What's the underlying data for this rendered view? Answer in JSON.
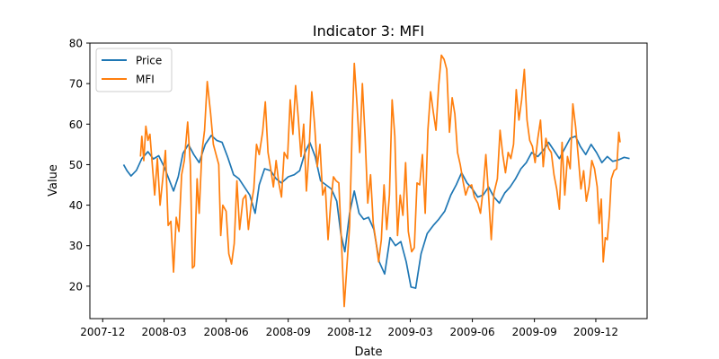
{
  "chart_data": {
    "type": "line",
    "title": "Indicator 3: MFI",
    "xlabel": "Date",
    "ylabel": "Value",
    "xlim": [
      "2007-11-12",
      "2010-02-15"
    ],
    "ylim": [
      12,
      80
    ],
    "xticks": [
      "2007-12",
      "2008-03",
      "2008-06",
      "2008-09",
      "2008-12",
      "2009-03",
      "2009-06",
      "2009-09",
      "2009-12"
    ],
    "yticks": [
      20,
      30,
      40,
      50,
      60,
      70,
      80
    ],
    "grid": false,
    "legend": "top-left",
    "series": [
      {
        "name": "Price",
        "color": "#1f77b4",
        "points": [
          [
            "2008-01-01",
            50.0
          ],
          [
            "2008-01-06",
            48.5
          ],
          [
            "2008-01-12",
            47.2
          ],
          [
            "2008-01-20",
            48.6
          ],
          [
            "2008-01-28",
            51.5
          ],
          [
            "2008-02-06",
            53.2
          ],
          [
            "2008-02-14",
            51.4
          ],
          [
            "2008-02-22",
            52.2
          ],
          [
            "2008-03-01",
            49.5
          ],
          [
            "2008-03-08",
            46.5
          ],
          [
            "2008-03-15",
            43.5
          ],
          [
            "2008-03-22",
            47.0
          ],
          [
            "2008-03-29",
            52.8
          ],
          [
            "2008-04-06",
            55.0
          ],
          [
            "2008-04-14",
            52.5
          ],
          [
            "2008-04-22",
            50.5
          ],
          [
            "2008-05-01",
            55.0
          ],
          [
            "2008-05-10",
            57.2
          ],
          [
            "2008-05-18",
            56.0
          ],
          [
            "2008-05-26",
            55.5
          ],
          [
            "2008-06-03",
            52.0
          ],
          [
            "2008-06-12",
            47.5
          ],
          [
            "2008-06-20",
            46.5
          ],
          [
            "2008-06-28",
            44.5
          ],
          [
            "2008-07-06",
            42.5
          ],
          [
            "2008-07-14",
            38.0
          ],
          [
            "2008-07-20",
            45.0
          ],
          [
            "2008-07-28",
            49.0
          ],
          [
            "2008-08-06",
            48.5
          ],
          [
            "2008-08-14",
            46.5
          ],
          [
            "2008-08-22",
            45.5
          ],
          [
            "2008-09-01",
            47.0
          ],
          [
            "2008-09-10",
            47.5
          ],
          [
            "2008-09-18",
            48.5
          ],
          [
            "2008-09-26",
            53.0
          ],
          [
            "2008-10-03",
            55.5
          ],
          [
            "2008-10-11",
            52.0
          ],
          [
            "2008-10-19",
            46.0
          ],
          [
            "2008-10-27",
            45.0
          ],
          [
            "2008-11-04",
            44.0
          ],
          [
            "2008-11-12",
            41.0
          ],
          [
            "2008-11-18",
            33.0
          ],
          [
            "2008-11-24",
            28.5
          ],
          [
            "2008-12-01",
            38.0
          ],
          [
            "2008-12-08",
            43.5
          ],
          [
            "2008-12-15",
            38.0
          ],
          [
            "2008-12-22",
            36.5
          ],
          [
            "2008-12-29",
            37.0
          ],
          [
            "2009-01-06",
            34.0
          ],
          [
            "2009-01-14",
            26.0
          ],
          [
            "2009-01-22",
            23.0
          ],
          [
            "2009-01-30",
            32.0
          ],
          [
            "2009-02-07",
            30.0
          ],
          [
            "2009-02-15",
            31.0
          ],
          [
            "2009-02-23",
            26.0
          ],
          [
            "2009-03-02",
            19.8
          ],
          [
            "2009-03-09",
            19.5
          ],
          [
            "2009-03-17",
            28.0
          ],
          [
            "2009-03-26",
            33.0
          ],
          [
            "2009-04-04",
            35.0
          ],
          [
            "2009-04-12",
            36.5
          ],
          [
            "2009-04-21",
            38.5
          ],
          [
            "2009-04-30",
            42.5
          ],
          [
            "2009-05-08",
            45.0
          ],
          [
            "2009-05-16",
            48.0
          ],
          [
            "2009-05-24",
            45.5
          ],
          [
            "2009-06-01",
            44.0
          ],
          [
            "2009-06-09",
            42.0
          ],
          [
            "2009-06-17",
            42.5
          ],
          [
            "2009-06-25",
            44.5
          ],
          [
            "2009-07-03",
            42.0
          ],
          [
            "2009-07-11",
            40.5
          ],
          [
            "2009-07-19",
            43.0
          ],
          [
            "2009-07-27",
            44.5
          ],
          [
            "2009-08-04",
            46.5
          ],
          [
            "2009-08-12",
            49.0
          ],
          [
            "2009-08-20",
            50.5
          ],
          [
            "2009-08-28",
            53.0
          ],
          [
            "2009-09-06",
            52.0
          ],
          [
            "2009-09-14",
            53.5
          ],
          [
            "2009-09-22",
            55.5
          ],
          [
            "2009-09-30",
            53.5
          ],
          [
            "2009-10-08",
            51.5
          ],
          [
            "2009-10-16",
            54.0
          ],
          [
            "2009-10-24",
            56.5
          ],
          [
            "2009-11-01",
            57.0
          ],
          [
            "2009-11-08",
            54.5
          ],
          [
            "2009-11-16",
            52.5
          ],
          [
            "2009-11-24",
            55.0
          ],
          [
            "2009-12-02",
            53.0
          ],
          [
            "2009-12-10",
            50.5
          ],
          [
            "2009-12-18",
            52.0
          ],
          [
            "2009-12-26",
            50.8
          ],
          [
            "2010-01-04",
            51.2
          ],
          [
            "2010-01-12",
            51.8
          ],
          [
            "2010-01-20",
            51.5
          ]
        ]
      },
      {
        "name": "MFI",
        "color": "#ff7f0e",
        "points": [
          [
            "2008-01-26",
            52.0
          ],
          [
            "2008-01-28",
            57.0
          ],
          [
            "2008-01-31",
            51.0
          ],
          [
            "2008-02-03",
            59.5
          ],
          [
            "2008-02-06",
            56.0
          ],
          [
            "2008-02-09",
            57.5
          ],
          [
            "2008-02-12",
            51.0
          ],
          [
            "2008-02-16",
            42.5
          ],
          [
            "2008-02-20",
            51.5
          ],
          [
            "2008-02-24",
            40.0
          ],
          [
            "2008-02-28",
            46.5
          ],
          [
            "2008-03-03",
            53.5
          ],
          [
            "2008-03-07",
            35.0
          ],
          [
            "2008-03-11",
            36.0
          ],
          [
            "2008-03-15",
            23.5
          ],
          [
            "2008-03-19",
            37.0
          ],
          [
            "2008-03-23",
            33.5
          ],
          [
            "2008-03-27",
            47.5
          ],
          [
            "2008-03-31",
            51.0
          ],
          [
            "2008-04-05",
            60.5
          ],
          [
            "2008-04-09",
            50.0
          ],
          [
            "2008-04-12",
            24.5
          ],
          [
            "2008-04-15",
            25.0
          ],
          [
            "2008-04-19",
            46.5
          ],
          [
            "2008-04-22",
            38.0
          ],
          [
            "2008-04-26",
            53.0
          ],
          [
            "2008-04-30",
            58.5
          ],
          [
            "2008-05-04",
            70.5
          ],
          [
            "2008-05-09",
            62.5
          ],
          [
            "2008-05-13",
            55.0
          ],
          [
            "2008-05-17",
            52.5
          ],
          [
            "2008-05-21",
            50.0
          ],
          [
            "2008-05-24",
            32.5
          ],
          [
            "2008-05-27",
            40.0
          ],
          [
            "2008-06-01",
            38.5
          ],
          [
            "2008-06-05",
            28.0
          ],
          [
            "2008-06-09",
            25.5
          ],
          [
            "2008-06-13",
            30.5
          ],
          [
            "2008-06-17",
            46.0
          ],
          [
            "2008-06-21",
            34.0
          ],
          [
            "2008-06-26",
            41.5
          ],
          [
            "2008-06-30",
            42.5
          ],
          [
            "2008-07-04",
            34.0
          ],
          [
            "2008-07-08",
            40.0
          ],
          [
            "2008-07-12",
            44.0
          ],
          [
            "2008-07-16",
            55.0
          ],
          [
            "2008-07-20",
            52.5
          ],
          [
            "2008-07-25",
            58.0
          ],
          [
            "2008-07-29",
            65.5
          ],
          [
            "2008-08-02",
            53.0
          ],
          [
            "2008-08-06",
            49.0
          ],
          [
            "2008-08-10",
            44.5
          ],
          [
            "2008-08-14",
            51.0
          ],
          [
            "2008-08-18",
            45.5
          ],
          [
            "2008-08-22",
            42.0
          ],
          [
            "2008-08-26",
            53.0
          ],
          [
            "2008-08-31",
            51.5
          ],
          [
            "2008-09-04",
            66.0
          ],
          [
            "2008-09-08",
            57.5
          ],
          [
            "2008-09-12",
            69.5
          ],
          [
            "2008-09-16",
            61.5
          ],
          [
            "2008-09-20",
            52.0
          ],
          [
            "2008-09-24",
            60.0
          ],
          [
            "2008-09-28",
            43.5
          ],
          [
            "2008-10-02",
            53.5
          ],
          [
            "2008-10-06",
            68.0
          ],
          [
            "2008-10-10",
            60.0
          ],
          [
            "2008-10-14",
            49.5
          ],
          [
            "2008-10-18",
            55.0
          ],
          [
            "2008-10-22",
            42.5
          ],
          [
            "2008-10-26",
            44.5
          ],
          [
            "2008-10-30",
            31.5
          ],
          [
            "2008-11-03",
            40.5
          ],
          [
            "2008-11-07",
            47.0
          ],
          [
            "2008-11-11",
            46.0
          ],
          [
            "2008-11-15",
            45.5
          ],
          [
            "2008-11-19",
            30.5
          ],
          [
            "2008-11-23",
            15.0
          ],
          [
            "2008-11-27",
            25.0
          ],
          [
            "2008-12-01",
            35.0
          ],
          [
            "2008-12-05",
            60.0
          ],
          [
            "2008-12-08",
            75.0
          ],
          [
            "2008-12-12",
            65.0
          ],
          [
            "2008-12-16",
            53.0
          ],
          [
            "2008-12-20",
            70.0
          ],
          [
            "2008-12-24",
            57.0
          ],
          [
            "2008-12-28",
            40.5
          ],
          [
            "2009-01-01",
            47.5
          ],
          [
            "2009-01-05",
            35.5
          ],
          [
            "2009-01-09",
            31.0
          ],
          [
            "2009-01-13",
            26.0
          ],
          [
            "2009-01-17",
            31.5
          ],
          [
            "2009-01-21",
            45.0
          ],
          [
            "2009-01-25",
            34.0
          ],
          [
            "2009-01-29",
            42.5
          ],
          [
            "2009-02-02",
            66.0
          ],
          [
            "2009-02-06",
            57.0
          ],
          [
            "2009-02-10",
            32.5
          ],
          [
            "2009-02-14",
            42.5
          ],
          [
            "2009-02-18",
            37.5
          ],
          [
            "2009-02-22",
            50.5
          ],
          [
            "2009-02-26",
            33.5
          ],
          [
            "2009-03-03",
            28.5
          ],
          [
            "2009-03-07",
            29.5
          ],
          [
            "2009-03-11",
            45.5
          ],
          [
            "2009-03-15",
            45.0
          ],
          [
            "2009-03-19",
            52.5
          ],
          [
            "2009-03-23",
            38.0
          ],
          [
            "2009-03-27",
            58.5
          ],
          [
            "2009-03-31",
            68.0
          ],
          [
            "2009-04-04",
            63.0
          ],
          [
            "2009-04-08",
            58.5
          ],
          [
            "2009-04-12",
            69.5
          ],
          [
            "2009-04-16",
            77.0
          ],
          [
            "2009-04-20",
            76.0
          ],
          [
            "2009-04-24",
            73.5
          ],
          [
            "2009-04-28",
            58.0
          ],
          [
            "2009-05-02",
            66.5
          ],
          [
            "2009-05-06",
            62.5
          ],
          [
            "2009-05-10",
            53.0
          ],
          [
            "2009-05-14",
            50.0
          ],
          [
            "2009-05-18",
            46.0
          ],
          [
            "2009-05-22",
            42.5
          ],
          [
            "2009-05-26",
            44.5
          ],
          [
            "2009-05-31",
            45.0
          ],
          [
            "2009-06-04",
            42.0
          ],
          [
            "2009-06-09",
            40.5
          ],
          [
            "2009-06-13",
            38.0
          ],
          [
            "2009-06-17",
            44.0
          ],
          [
            "2009-06-21",
            52.5
          ],
          [
            "2009-06-25",
            42.5
          ],
          [
            "2009-06-29",
            31.5
          ],
          [
            "2009-07-03",
            43.0
          ],
          [
            "2009-07-08",
            46.5
          ],
          [
            "2009-07-12",
            58.5
          ],
          [
            "2009-07-16",
            52.5
          ],
          [
            "2009-07-20",
            48.0
          ],
          [
            "2009-07-24",
            53.0
          ],
          [
            "2009-07-28",
            51.5
          ],
          [
            "2009-08-01",
            55.0
          ],
          [
            "2009-08-05",
            68.5
          ],
          [
            "2009-08-09",
            61.0
          ],
          [
            "2009-08-13",
            66.0
          ],
          [
            "2009-08-17",
            73.5
          ],
          [
            "2009-08-21",
            61.0
          ],
          [
            "2009-08-25",
            56.0
          ],
          [
            "2009-08-29",
            54.5
          ],
          [
            "2009-09-02",
            50.5
          ],
          [
            "2009-09-06",
            56.5
          ],
          [
            "2009-09-10",
            61.0
          ],
          [
            "2009-09-14",
            49.5
          ],
          [
            "2009-09-18",
            56.5
          ],
          [
            "2009-09-22",
            54.0
          ],
          [
            "2009-09-26",
            53.0
          ],
          [
            "2009-09-30",
            47.5
          ],
          [
            "2009-10-04",
            44.0
          ],
          [
            "2009-10-08",
            39.0
          ],
          [
            "2009-10-12",
            55.5
          ],
          [
            "2009-10-16",
            42.5
          ],
          [
            "2009-10-20",
            52.0
          ],
          [
            "2009-10-24",
            49.0
          ],
          [
            "2009-10-28",
            65.0
          ],
          [
            "2009-11-01",
            59.5
          ],
          [
            "2009-11-05",
            52.0
          ],
          [
            "2009-11-09",
            44.0
          ],
          [
            "2009-11-13",
            48.5
          ],
          [
            "2009-11-17",
            41.0
          ],
          [
            "2009-11-21",
            44.5
          ],
          [
            "2009-11-25",
            51.0
          ],
          [
            "2009-11-29",
            49.0
          ],
          [
            "2009-12-03",
            44.5
          ],
          [
            "2009-12-06",
            35.5
          ],
          [
            "2009-12-09",
            41.5
          ],
          [
            "2009-12-12",
            26.0
          ],
          [
            "2009-12-15",
            32.0
          ],
          [
            "2009-12-18",
            31.5
          ],
          [
            "2009-12-21",
            37.5
          ],
          [
            "2009-12-24",
            46.5
          ],
          [
            "2009-12-28",
            48.5
          ],
          [
            "2010-01-01",
            49.0
          ],
          [
            "2010-01-04",
            58.0
          ],
          [
            "2010-01-06",
            55.5
          ]
        ]
      }
    ]
  }
}
